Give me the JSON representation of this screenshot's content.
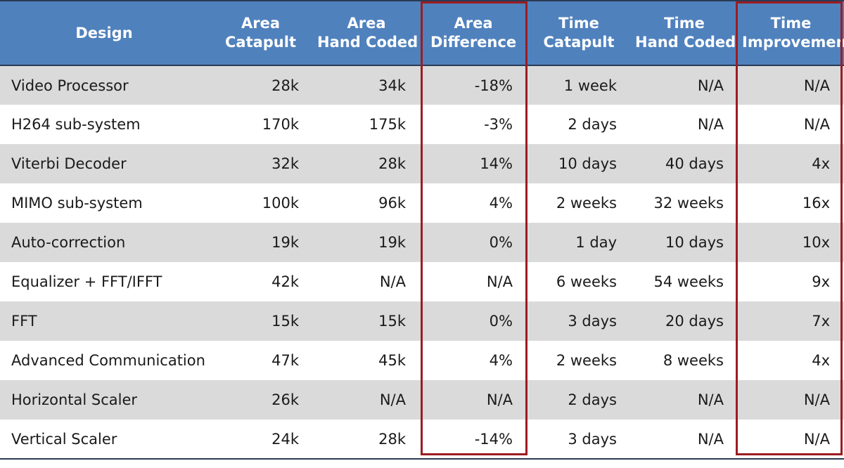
{
  "table": {
    "headers": [
      [
        "Design"
      ],
      [
        "Area",
        "Catapult"
      ],
      [
        "Area",
        "Hand Coded"
      ],
      [
        "Area",
        "Difference"
      ],
      [
        "Time",
        "Catapult"
      ],
      [
        "Time",
        "Hand Coded"
      ],
      [
        "Time",
        "Improvement"
      ]
    ],
    "rows": [
      [
        "Video Processor",
        "28k",
        "34k",
        "-18%",
        "1 week",
        "N/A",
        "N/A"
      ],
      [
        "H264 sub-system",
        "170k",
        "175k",
        "-3%",
        "2 days",
        "N/A",
        "N/A"
      ],
      [
        "Viterbi Decoder",
        "32k",
        "28k",
        "14%",
        "10 days",
        "40 days",
        "4x"
      ],
      [
        "MIMO sub-system",
        "100k",
        "96k",
        "4%",
        "2 weeks",
        "32 weeks",
        "16x"
      ],
      [
        "Auto-correction",
        "19k",
        "19k",
        "0%",
        "1 day",
        "10 days",
        "10x"
      ],
      [
        "Equalizer + FFT/IFFT",
        "42k",
        "N/A",
        "N/A",
        "6 weeks",
        "54 weeks",
        "9x"
      ],
      [
        "FFT",
        "15k",
        "15k",
        "0%",
        "3 days",
        "20 days",
        "7x"
      ],
      [
        "Advanced Communication",
        "47k",
        "45k",
        "4%",
        "2 weeks",
        "8 weeks",
        "4x"
      ],
      [
        "Horizontal Scaler",
        "26k",
        "N/A",
        "N/A",
        "2 days",
        "N/A",
        "N/A"
      ],
      [
        "Vertical Scaler",
        "24k",
        "28k",
        "-14%",
        "3 days",
        "N/A",
        "N/A"
      ]
    ]
  },
  "highlight_color": "#9b1c22",
  "header_color": "#4f81bd"
}
